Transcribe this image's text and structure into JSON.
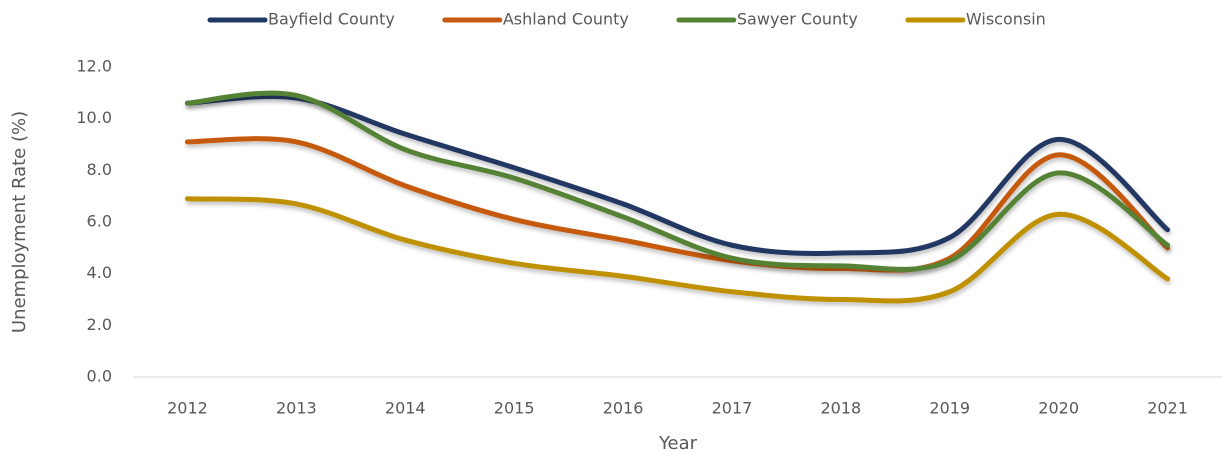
{
  "chart_data": {
    "type": "line",
    "x_label": "Year",
    "y_label": "Unemployment Rate (%)",
    "categories": [
      "2012",
      "2013",
      "2014",
      "2015",
      "2016",
      "2017",
      "2018",
      "2019",
      "2020",
      "2021"
    ],
    "series": [
      {
        "name": "Bayfield County",
        "color": "#203864",
        "values": [
          10.6,
          10.8,
          9.4,
          8.1,
          6.7,
          5.1,
          4.8,
          5.4,
          9.2,
          5.7
        ]
      },
      {
        "name": "Ashland County",
        "color": "#c55a11",
        "values": [
          9.1,
          9.1,
          7.4,
          6.1,
          5.3,
          4.5,
          4.2,
          4.6,
          8.6,
          5.0
        ]
      },
      {
        "name": "Sawyer County",
        "color": "#548235",
        "values": [
          10.6,
          10.9,
          8.8,
          7.7,
          6.2,
          4.6,
          4.3,
          4.5,
          7.9,
          5.1
        ]
      },
      {
        "name": "Wisconsin",
        "color": "#bf9000",
        "values": [
          6.9,
          6.7,
          5.3,
          4.4,
          3.9,
          3.3,
          3.0,
          3.3,
          6.3,
          3.8
        ]
      }
    ],
    "ylim": [
      0,
      12
    ],
    "yticks": [
      {
        "value": 0,
        "label": "0.0"
      },
      {
        "value": 2,
        "label": "2.0"
      },
      {
        "value": 4,
        "label": "4.0"
      },
      {
        "value": 6,
        "label": "6.0"
      },
      {
        "value": 8,
        "label": "8.0"
      },
      {
        "value": 10,
        "label": "10.0"
      },
      {
        "value": 12,
        "label": "12.0"
      }
    ],
    "grid": false,
    "smooth": true,
    "legend": "top"
  }
}
